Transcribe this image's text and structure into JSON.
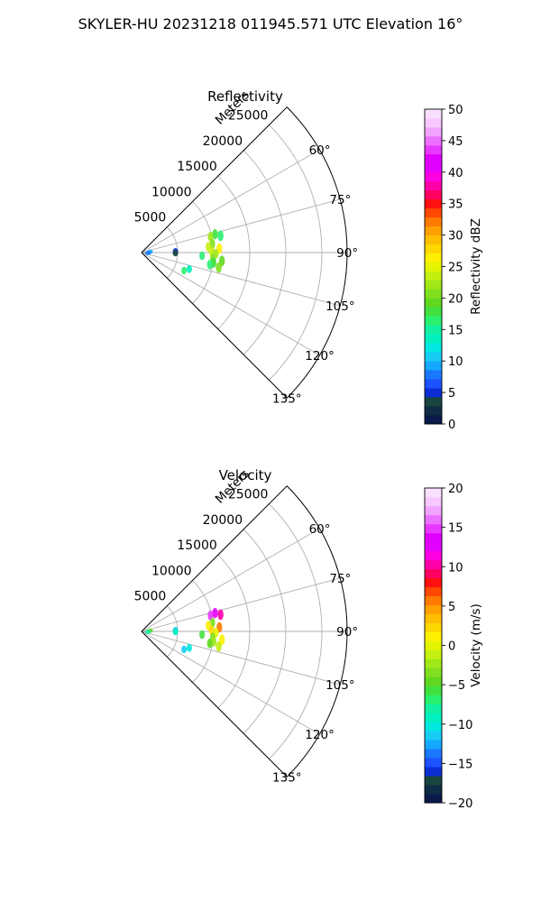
{
  "figure": {
    "suptitle": "SKYLER-HU  20231218  011945.571 UTC Elevation 16°"
  },
  "chart_data": [
    {
      "type": "heatmap",
      "subtype": "polar-sector-ppi",
      "title": "Reflectivity",
      "radial_axis_label": "Meters",
      "radial_ticks": [
        5000,
        10000,
        15000,
        20000,
        25000
      ],
      "radial_tick_labels": [
        "5000",
        "10000",
        "15000",
        "20000",
        "25000"
      ],
      "rlim": [
        0,
        28500
      ],
      "theta_range_deg": [
        45,
        135
      ],
      "theta_ticks": [
        60,
        75,
        90,
        105,
        120,
        135
      ],
      "theta_tick_labels": [
        "60°",
        "75°",
        "90°",
        "105°",
        "120°",
        "135°"
      ],
      "grid": true,
      "colorbar": {
        "label": "Reflectivity dBZ",
        "range": [
          0,
          50
        ],
        "ticks": [
          0,
          5,
          10,
          15,
          20,
          25,
          30,
          35,
          40,
          45,
          50
        ],
        "tick_labels": [
          "0",
          "5",
          "10",
          "15",
          "20",
          "25",
          "30",
          "35",
          "40",
          "45",
          "50"
        ],
        "colors": [
          "#081a4a",
          "#0e2d44",
          "#18463e",
          "#0b2ed4",
          "#1c52ff",
          "#1a78ff",
          "#14a8ff",
          "#16ccf5",
          "#00e8e0",
          "#00f0c0",
          "#10f0a0",
          "#2af070",
          "#40e040",
          "#60d820",
          "#80e020",
          "#a0e818",
          "#c4f010",
          "#e4f400",
          "#fff000",
          "#ffd800",
          "#ffbe00",
          "#ffa000",
          "#ff7a00",
          "#ff4800",
          "#ff1010",
          "#ff0060",
          "#ff00a8",
          "#ff00e0",
          "#e400ff",
          "#e000ff",
          "#e838ff",
          "#ec70ff",
          "#f0a4ff",
          "#f6c8ff",
          "#fae0ff"
        ]
      },
      "echo_regions": [
        {
          "theta": 76,
          "r": 10500,
          "value": 18
        },
        {
          "theta": 77,
          "r": 9800,
          "value": 22
        },
        {
          "theta": 78,
          "r": 11200,
          "value": 16
        },
        {
          "theta": 83,
          "r": 9900,
          "value": 21
        },
        {
          "theta": 85,
          "r": 9300,
          "value": 24
        },
        {
          "theta": 87,
          "r": 10800,
          "value": 26
        },
        {
          "theta": 89,
          "r": 9700,
          "value": 23
        },
        {
          "theta": 91,
          "r": 10300,
          "value": 22
        },
        {
          "theta": 93,
          "r": 8400,
          "value": 17
        },
        {
          "theta": 95,
          "r": 9900,
          "value": 21
        },
        {
          "theta": 96,
          "r": 11200,
          "value": 19
        },
        {
          "theta": 98,
          "r": 10100,
          "value": 18
        },
        {
          "theta": 100,
          "r": 9600,
          "value": 17
        },
        {
          "theta": 101,
          "r": 10900,
          "value": 20
        },
        {
          "theta": 109,
          "r": 7000,
          "value": 14
        },
        {
          "theta": 113,
          "r": 6400,
          "value": 16
        },
        {
          "theta": 88,
          "r": 4700,
          "value": 5
        },
        {
          "theta": 91,
          "r": 4700,
          "value": 4
        },
        {
          "theta": 85,
          "r": 1200,
          "value": 9
        },
        {
          "theta": 95,
          "r": 900,
          "value": 8
        }
      ]
    },
    {
      "type": "heatmap",
      "subtype": "polar-sector-ppi",
      "title": "Velocity",
      "radial_axis_label": "Meters",
      "radial_ticks": [
        5000,
        10000,
        15000,
        20000,
        25000
      ],
      "radial_tick_labels": [
        "5000",
        "10000",
        "15000",
        "20000",
        "25000"
      ],
      "rlim": [
        0,
        28500
      ],
      "theta_range_deg": [
        45,
        135
      ],
      "theta_ticks": [
        60,
        75,
        90,
        105,
        120,
        135
      ],
      "theta_tick_labels": [
        "60°",
        "75°",
        "90°",
        "105°",
        "120°",
        "135°"
      ],
      "grid": true,
      "colorbar": {
        "label": "Velocity (m/s)",
        "range": [
          -20,
          20
        ],
        "ticks": [
          -20,
          -15,
          -10,
          -5,
          0,
          5,
          10,
          15,
          20
        ],
        "tick_labels": [
          "−20",
          "−15",
          "−10",
          "−5",
          "0",
          "5",
          "10",
          "15",
          "20"
        ],
        "colors": [
          "#081a4a",
          "#0e2d44",
          "#18463e",
          "#0b2ed4",
          "#1c52ff",
          "#1a78ff",
          "#14a8ff",
          "#16ccf5",
          "#00e8e0",
          "#00f0c0",
          "#10f0a0",
          "#2af070",
          "#40e040",
          "#60d820",
          "#80e020",
          "#a0e818",
          "#c4f010",
          "#e4f400",
          "#fff000",
          "#ffd800",
          "#ffbe00",
          "#ffa000",
          "#ff7a00",
          "#ff4800",
          "#ff1010",
          "#ff0060",
          "#ff00a8",
          "#ff00e0",
          "#e400ff",
          "#e000ff",
          "#e838ff",
          "#ec70ff",
          "#f0a4ff",
          "#f6c8ff",
          "#fae0ff"
        ]
      },
      "echo_regions": [
        {
          "theta": 76,
          "r": 10500,
          "value": 12
        },
        {
          "theta": 77,
          "r": 9800,
          "value": 15
        },
        {
          "theta": 78,
          "r": 11200,
          "value": 10
        },
        {
          "theta": 83,
          "r": 9900,
          "value": -3
        },
        {
          "theta": 85,
          "r": 9300,
          "value": 1
        },
        {
          "theta": 87,
          "r": 10800,
          "value": 6
        },
        {
          "theta": 89,
          "r": 9700,
          "value": 2
        },
        {
          "theta": 91,
          "r": 10300,
          "value": 0
        },
        {
          "theta": 93,
          "r": 8400,
          "value": -6
        },
        {
          "theta": 95,
          "r": 9900,
          "value": -4
        },
        {
          "theta": 96,
          "r": 11200,
          "value": 1
        },
        {
          "theta": 98,
          "r": 10100,
          "value": -2
        },
        {
          "theta": 100,
          "r": 9600,
          "value": -5
        },
        {
          "theta": 101,
          "r": 10900,
          "value": -1
        },
        {
          "theta": 109,
          "r": 7000,
          "value": -10
        },
        {
          "theta": 113,
          "r": 6400,
          "value": -11
        },
        {
          "theta": 88,
          "r": 4700,
          "value": -11
        },
        {
          "theta": 91,
          "r": 4700,
          "value": -9
        },
        {
          "theta": 85,
          "r": 1200,
          "value": -5
        },
        {
          "theta": 95,
          "r": 900,
          "value": -8
        }
      ]
    }
  ]
}
